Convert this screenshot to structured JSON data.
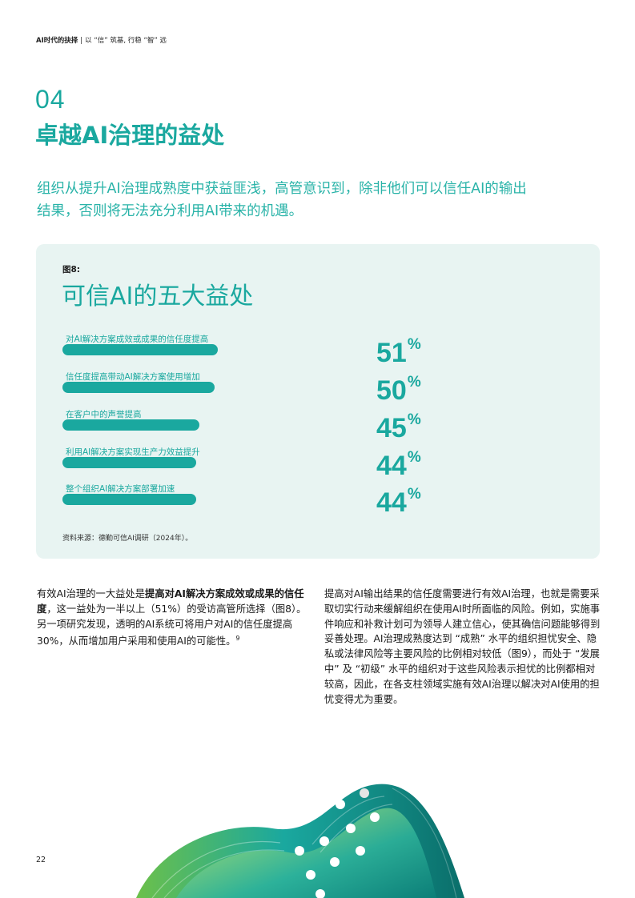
{
  "header": {
    "title": "AI时代的抉择",
    "separator": "|",
    "subtitle": "以 “信” 筑基, 行稳 “智” 远"
  },
  "section": {
    "number": "04",
    "title": "卓越AI治理的益处",
    "intro": "组织从提升AI治理成熟度中获益匪浅，高管意识到，除非他们可以信任AI的输出结果，否则将无法充分利用AI带来的机遇。"
  },
  "figure": {
    "label": "图8:",
    "title": "可信AI的五大益处",
    "source": "资料来源：德勤可信AI调研（2024年）。",
    "percent_sign": "%"
  },
  "chart_data": {
    "type": "bar",
    "orientation": "horizontal",
    "title": "可信AI的五大益处",
    "categories": [
      "对AI解决方案成效或成果的信任度提高",
      "信任度提高带动AI解决方案使用增加",
      "在客户中的声誉提高",
      "利用AI解决方案实现生产力效益提升",
      "整个组织AI解决方案部署加速"
    ],
    "values": [
      51,
      50,
      45,
      44,
      44
    ],
    "value_labels": [
      "51",
      "50",
      "45",
      "44",
      "44"
    ],
    "unit": "%",
    "xlim": [
      0,
      100
    ],
    "grid": false,
    "bar_color": "#1aa89f"
  },
  "body": {
    "left_1": "有效AI治理的一大益处是",
    "left_bold": "提高对AI解决方案成效或成果的信任度",
    "left_2": "，这一益处为一半以上（51%）的受访高管所选择（图8）。另一项研究发现，透明的AI系统可将用户对AI的信任度提高30%，从而增加用户采用和使用AI的可能性。",
    "left_footnote": "9",
    "right": "提高对AI输出结果的信任度需要进行有效AI治理，也就是需要采取切实行动来缓解组织在使用AI时所面临的风险。例如，实施事件响应和补救计划可为领导人建立信心，使其确信问题能够得到妥善处理。AI治理成熟度达到 “成熟” 水平的组织担忧安全、隐私或法律风险等主要风险的比例相对较低（图9），而处于 “发展中” 及 “初级” 水平的组织对于这些风险表示担忧的比例都相对较高，因此，在各支柱领域实施有效AI治理以解决对AI使用的担忧变得尤为重要。"
  },
  "page_number": "22",
  "colors": {
    "accent": "#1aa89f",
    "panel_bg": "#e8f4f2"
  }
}
